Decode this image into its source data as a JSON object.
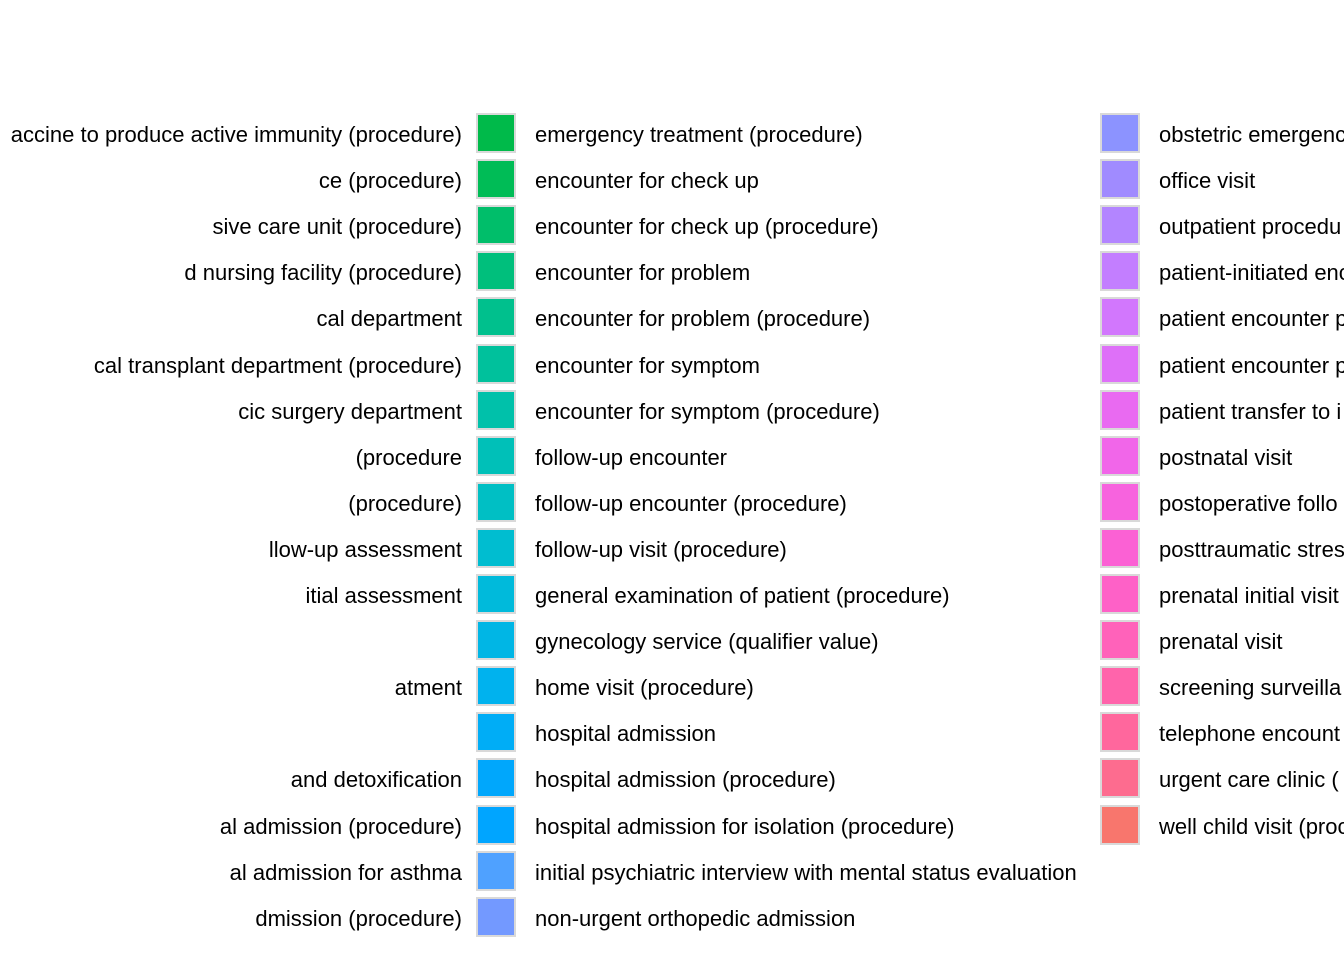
{
  "chart_data": {
    "type": "legend",
    "title": "",
    "legend_columns": [
      {
        "entries": [
          {
            "label": "accine to produce active immunity (procedure)"
          },
          {
            "label": "ce (procedure)"
          },
          {
            "label": "sive care unit (procedure)"
          },
          {
            "label": "d nursing facility (procedure)"
          },
          {
            "label": "cal department"
          },
          {
            "label": "cal transplant department (procedure)"
          },
          {
            "label": "cic surgery department"
          },
          {
            "label": "(procedure"
          },
          {
            "label": "(procedure)"
          },
          {
            "label": "llow-up assessment"
          },
          {
            "label": "itial assessment"
          },
          {
            "label": ""
          },
          {
            "label": "atment"
          },
          {
            "label": ""
          },
          {
            "label": "and detoxification"
          },
          {
            "label": "al admission (procedure)"
          },
          {
            "label": "al admission for asthma"
          },
          {
            "label": "dmission (procedure)"
          }
        ]
      },
      {
        "entries": [
          {
            "label": "emergency treatment (procedure)",
            "color": "#00BA4A"
          },
          {
            "label": "encounter for check up",
            "color": "#00BC56"
          },
          {
            "label": "encounter for check up (procedure)",
            "color": "#00BE6A"
          },
          {
            "label": "encounter for problem",
            "color": "#00BF7C"
          },
          {
            "label": "encounter for problem (procedure)",
            "color": "#00C08D"
          },
          {
            "label": "encounter for symptom",
            "color": "#00C19C"
          },
          {
            "label": "encounter for symptom (procedure)",
            "color": "#00C1AA"
          },
          {
            "label": "follow-up encounter",
            "color": "#00C0B8"
          },
          {
            "label": "follow-up encounter (procedure)",
            "color": "#00BFC4"
          },
          {
            "label": "follow-up visit (procedure)",
            "color": "#00BDD0"
          },
          {
            "label": "general examination of patient (procedure)",
            "color": "#00BADB"
          },
          {
            "label": "gynecology service (qualifier value)",
            "color": "#00B6E5"
          },
          {
            "label": "home visit (procedure)",
            "color": "#00B2EE"
          },
          {
            "label": "hospital admission",
            "color": "#00ADF6"
          },
          {
            "label": "hospital admission (procedure)",
            "color": "#00A7FC"
          },
          {
            "label": "hospital admission for isolation (procedure)",
            "color": "#00A5FF"
          },
          {
            "label": "initial psychiatric interview with mental status evaluation",
            "color": "#4FA1FF"
          },
          {
            "label": "non-urgent orthopedic admission",
            "color": "#7399FF"
          }
        ]
      },
      {
        "entries": [
          {
            "label": "obstetric emergenc",
            "color": "#8C93FF"
          },
          {
            "label": "office visit",
            "color": "#A08BFF"
          },
          {
            "label": "outpatient procedu",
            "color": "#B385FF"
          },
          {
            "label": "patient-initiated enc",
            "color": "#C37EFF"
          },
          {
            "label": "patient encounter p",
            "color": "#D277FD"
          },
          {
            "label": "patient encounter p",
            "color": "#DE70F8"
          },
          {
            "label": "patient transfer to i",
            "color": "#E96AF1"
          },
          {
            "label": "postnatal visit",
            "color": "#F166E9"
          },
          {
            "label": "postoperative follo",
            "color": "#F763DE"
          },
          {
            "label": "posttraumatic stres",
            "color": "#FB61D4"
          },
          {
            "label": "prenatal initial visit",
            "color": "#FE61C7"
          },
          {
            "label": "prenatal visit",
            "color": "#FF62BA"
          },
          {
            "label": "screening surveilla",
            "color": "#FF64AB"
          },
          {
            "label": "telephone encount",
            "color": "#FF679D"
          },
          {
            "label": "urgent care clinic (",
            "color": "#FD6C8F"
          },
          {
            "label": "well child visit (proc",
            "color": "#F8766D"
          }
        ]
      }
    ]
  }
}
